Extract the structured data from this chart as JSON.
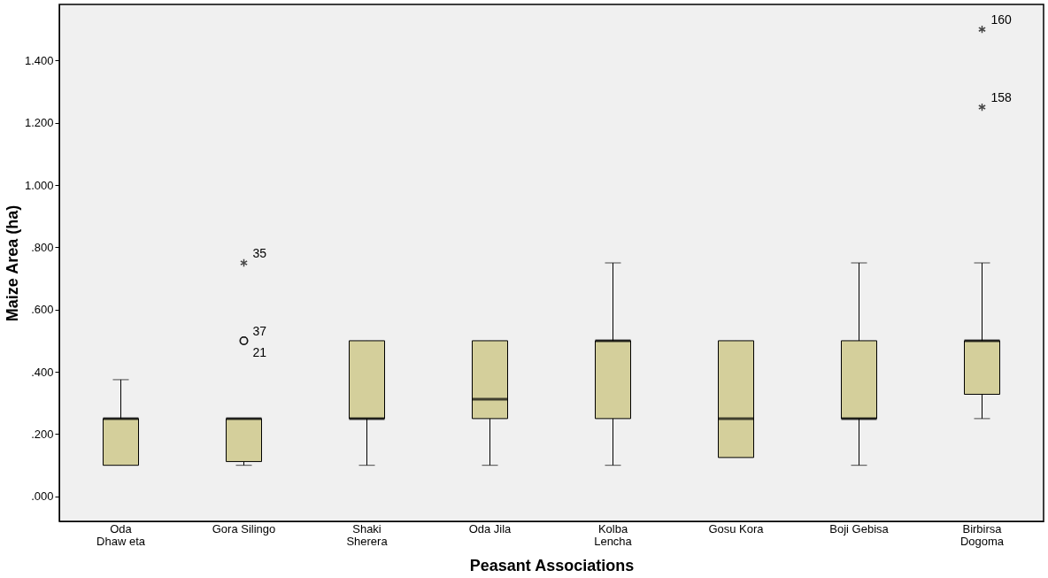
{
  "chart_data": {
    "type": "box",
    "categories": [
      "Oda\nDhaw eta",
      "Gora Silingo",
      "Shaki\nSherera",
      "Oda Jila",
      "Kolba\nLencha",
      "Gosu Kora",
      "Boji Gebisa",
      "Birbirsa\nDogoma"
    ],
    "boxes": [
      {
        "low": 0.1,
        "q1": 0.1,
        "median": 0.25,
        "q3": 0.25,
        "high": 0.375
      },
      {
        "low": 0.1,
        "q1": 0.112,
        "median": 0.25,
        "q3": 0.25,
        "high": 0.25,
        "outliers": [
          0.75,
          0.5,
          0.5
        ]
      },
      {
        "low": 0.1,
        "q1": 0.25,
        "median": 0.25,
        "q3": 0.5,
        "high": 0.5
      },
      {
        "low": 0.1,
        "q1": 0.25,
        "median": 0.312,
        "q3": 0.5,
        "high": 0.5
      },
      {
        "low": 0.1,
        "q1": 0.25,
        "median": 0.5,
        "q3": 0.5,
        "high": 0.75
      },
      {
        "low": 0.125,
        "q1": 0.125,
        "median": 0.25,
        "q3": 0.5,
        "high": 0.5
      },
      {
        "low": 0.1,
        "q1": 0.25,
        "median": 0.25,
        "q3": 0.5,
        "high": 0.75
      },
      {
        "low": 0.25,
        "q1": 0.328,
        "median": 0.5,
        "q3": 0.5,
        "high": 0.75,
        "outliers": [
          1.25,
          1.5
        ]
      }
    ],
    "color": "#d4cf9b",
    "xlabel": "Peasant Associations",
    "ylabel": "Maize Area (ha)",
    "ylim": [
      -0.08,
      1.58
    ],
    "yticks": [
      {
        "value": 0,
        "label": ".000"
      },
      {
        "value": 0.2,
        "label": ".200"
      },
      {
        "value": 0.4,
        "label": ".400"
      },
      {
        "value": 0.6,
        "label": ".600"
      },
      {
        "value": 0.8,
        "label": ".800"
      },
      {
        "value": 1.0,
        "label": "1.000"
      },
      {
        "value": 1.2,
        "label": "1.200"
      },
      {
        "value": 1.4,
        "label": "1.400"
      }
    ],
    "annotations": [
      "35",
      "37",
      "21",
      "158",
      "160"
    ],
    "grid": false
  }
}
